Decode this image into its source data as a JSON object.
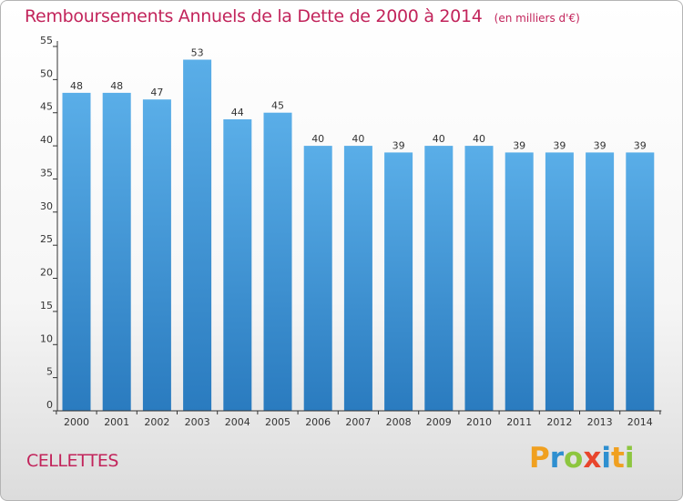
{
  "chart_data": {
    "type": "bar",
    "title": "Remboursements Annuels de la Dette de 2000 à 2014",
    "unit_label": "(en milliers d'€)",
    "categories": [
      "2000",
      "2001",
      "2002",
      "2003",
      "2004",
      "2005",
      "2006",
      "2007",
      "2008",
      "2009",
      "2010",
      "2011",
      "2012",
      "2013",
      "2014"
    ],
    "values": [
      48,
      48,
      47,
      53,
      44,
      45,
      40,
      40,
      39,
      40,
      40,
      39,
      39,
      39,
      39
    ],
    "yticks": [
      0,
      5,
      10,
      15,
      20,
      25,
      30,
      35,
      40,
      45,
      50,
      55
    ],
    "ylim": [
      0,
      55
    ],
    "xlabel": "",
    "ylabel": "",
    "grid": false,
    "bar_color_top": "#5aaee8",
    "bar_color_bottom": "#2a7bbf"
  },
  "footer": {
    "commune": "CELLETTES",
    "brand": "Proxiti",
    "brand_letters": [
      {
        "char": "P",
        "color": "#f0a020"
      },
      {
        "char": "r",
        "color": "#2e8fd0"
      },
      {
        "char": "o",
        "color": "#8dc63f"
      },
      {
        "char": "x",
        "color": "#e8452c"
      },
      {
        "char": "i",
        "color": "#2e8fd0"
      },
      {
        "char": "t",
        "color": "#f0a020"
      },
      {
        "char": "i",
        "color": "#8dc63f"
      }
    ]
  }
}
